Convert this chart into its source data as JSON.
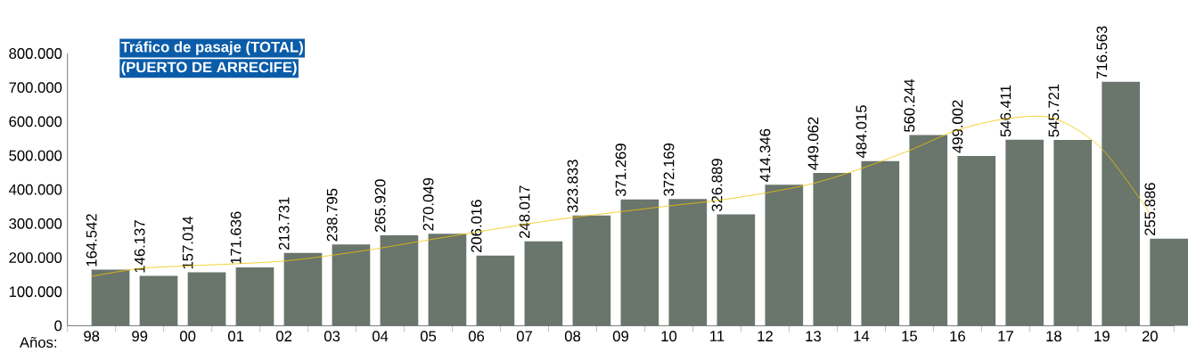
{
  "chart_data": {
    "type": "bar",
    "title": "Tráfico de pasaje (TOTAL)",
    "subtitle": "(PUERTO DE ARRECIFE)",
    "xlabel": "Años:",
    "categories": [
      "98",
      "99",
      "00",
      "01",
      "02",
      "03",
      "04",
      "05",
      "06",
      "07",
      "08",
      "09",
      "10",
      "11",
      "12",
      "13",
      "14",
      "15",
      "16",
      "17",
      "18",
      "19",
      "20"
    ],
    "series": [
      {
        "color": "#6a756c",
        "values": [
          164542,
          146137,
          157014,
          171636,
          213731,
          238795,
          265920,
          270049,
          206016,
          248017,
          323833,
          371269,
          372169,
          326889,
          414346,
          449062,
          484015,
          560244,
          499002,
          546411,
          545721,
          716563,
          255886
        ],
        "value_labels": [
          "164.542",
          "146.137",
          "157.014",
          "171.636",
          "213.731",
          "238.795",
          "265.920",
          "270.049",
          "206.016",
          "248.017",
          "323.833",
          "371.269",
          "372.169",
          "326.889",
          "414.346",
          "449.062",
          "484.015",
          "560.244",
          "499.002",
          "546.411",
          "545.721",
          "716.563",
          "255.886"
        ]
      },
      {
        "type": "line",
        "color": "#f2c500",
        "values": [
          145000,
          168000,
          176000,
          182000,
          190000,
          207000,
          228000,
          252000,
          275000,
          298000,
          318000,
          335000,
          352000,
          368000,
          390000,
          418000,
          462000,
          515000,
          575000,
          608000,
          610000,
          520000,
          330000
        ]
      }
    ],
    "ylim": [
      0,
      800000
    ],
    "yticks": [
      0,
      {
        "value": 100000,
        "label": "100.000"
      },
      {
        "value": 200000,
        "label": "200.000"
      },
      {
        "value": 300000,
        "label": "300.000"
      },
      {
        "value": 400000,
        "label": "400.000"
      },
      {
        "value": 500000,
        "label": "500.000"
      },
      {
        "value": 600000,
        "label": "600.000"
      },
      {
        "value": 700000,
        "label": "700.000"
      },
      {
        "value": 800000,
        "label": "800.000"
      }
    ],
    "grid": false,
    "marker": "none",
    "line_style": "solid"
  }
}
